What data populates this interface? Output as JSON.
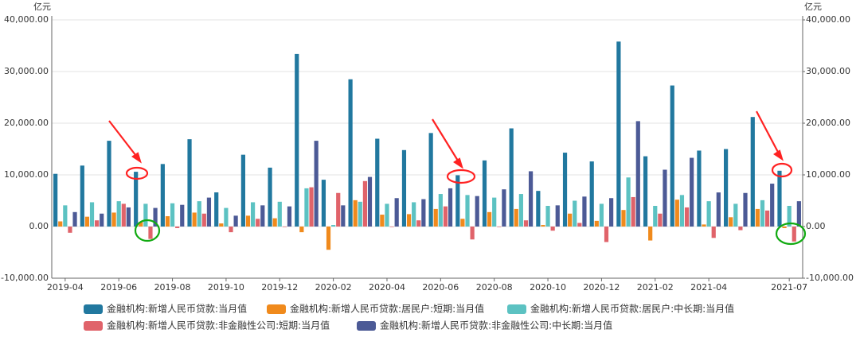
{
  "chart_data": {
    "type": "bar",
    "y_unit": "亿元",
    "y2_unit": "亿元",
    "categories": [
      "2019-04",
      null,
      "2019-06",
      null,
      "2019-08",
      null,
      "2019-10",
      null,
      "2019-12",
      null,
      "2020-02",
      null,
      "2020-04",
      null,
      "2020-06",
      null,
      "2020-08",
      null,
      "2020-10",
      null,
      "2020-12",
      null,
      "2021-02",
      null,
      "2021-04",
      null,
      null,
      "2021-07"
    ],
    "series": [
      {
        "name": "金融机构:新增人民币贷款:当月值",
        "color": "#21789f",
        "values": [
          10200,
          11800,
          16600,
          10600,
          12100,
          16900,
          6613,
          13900,
          11400,
          33400,
          9057,
          28500,
          17000,
          14800,
          18100,
          9927,
          12800,
          19000,
          6898,
          14300,
          12600,
          35800,
          13600,
          27300,
          14700,
          15000,
          21200,
          10800
        ]
      },
      {
        "name": "金融机构:新增人民币贷款:居民户:短期:当月值",
        "color": "#f08a1c",
        "values": [
          1000,
          1900,
          2700,
          900,
          2000,
          2700,
          600,
          2100,
          1600,
          -1100,
          -4500,
          5100,
          2300,
          2400,
          3400,
          1500,
          2800,
          3400,
          300,
          2500,
          1100,
          3200,
          -2700,
          5200,
          400,
          1800,
          3400,
          -300
        ]
      },
      {
        "name": "金融机构:新增人民币贷款:居民户:中长期:当月值",
        "color": "#5cc2c2",
        "values": [
          4100,
          4700,
          4900,
          4400,
          4500,
          4900,
          3600,
          4700,
          4800,
          7400,
          300,
          4800,
          4400,
          4700,
          6300,
          6100,
          5600,
          6300,
          4000,
          5000,
          4400,
          9500,
          4000,
          6100,
          4900,
          4400,
          5100,
          4000
        ]
      },
      {
        "name": "金融机构:新增人民币贷款:非金融性公司:短期:当月值",
        "color": "#e0636a",
        "values": [
          -1200,
          1200,
          4400,
          -2400,
          -300,
          2500,
          -1100,
          1500,
          -100,
          7600,
          6500,
          8800,
          -100,
          1200,
          3900,
          -2500,
          -100,
          1200,
          -800,
          700,
          -3000,
          5700,
          2500,
          3700,
          -2200,
          -700,
          3100,
          -2900
        ]
      },
      {
        "name": "金融机构:新增人民币贷款:非金融性公司:中长期:当月值",
        "color": "#4c5a96",
        "values": [
          2800,
          2500,
          3700,
          3600,
          4200,
          5600,
          2100,
          4100,
          3900,
          16600,
          4100,
          9600,
          5500,
          5300,
          7400,
          5900,
          7200,
          10700,
          4100,
          5800,
          5500,
          20400,
          11000,
          13300,
          6600,
          6500,
          8300,
          4900
        ]
      }
    ],
    "ylim": [
      -10000,
      40000
    ],
    "yticks": [
      {
        "value": -10000,
        "label": "-10,000.00"
      },
      {
        "value": 0,
        "label": "0.00"
      },
      {
        "value": 10000,
        "label": "10,000.00"
      },
      {
        "value": 20000,
        "label": "20,000.00"
      },
      {
        "value": 30000,
        "label": "30,000.00"
      },
      {
        "value": 40000,
        "label": "40,000.00"
      }
    ],
    "y2lim": [
      -10000,
      40000
    ],
    "y2ticks": [
      {
        "value": -10000,
        "label": "-10,000.00"
      },
      {
        "value": 0,
        "label": "0.00"
      },
      {
        "value": 10000,
        "label": "10,000.00"
      },
      {
        "value": 20000,
        "label": "20,000.00"
      },
      {
        "value": 30000,
        "label": "30,000.00"
      },
      {
        "value": 40000,
        "label": "40,000.00"
      }
    ],
    "grid": true
  }
}
